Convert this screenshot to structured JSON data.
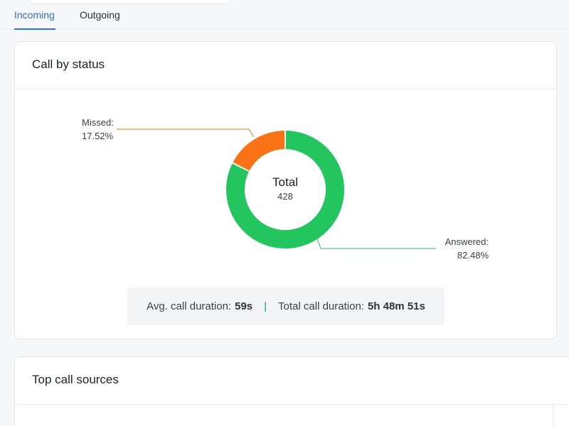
{
  "tabs": [
    {
      "label": "Incoming",
      "active": true
    },
    {
      "label": "Outgoing",
      "active": false
    }
  ],
  "status_card": {
    "title": "Call by status",
    "center_label": "Total",
    "center_value": "428",
    "summary": {
      "avg_label": "Avg. call duration:",
      "avg_value": "59s",
      "separator": "|",
      "total_label": "Total call duration:",
      "total_value": "5h 48m 51s"
    }
  },
  "chart_data": {
    "type": "pie",
    "center_label": "Total",
    "center_value": 428,
    "slices": [
      {
        "label": "Missed:",
        "value": 17.52,
        "value_text": "17.52%",
        "color": "#f97316"
      },
      {
        "label": "Answered:",
        "value": 82.48,
        "value_text": "82.48%",
        "color": "#22c55e"
      }
    ]
  },
  "sources_card": {
    "title": "Top call sources"
  },
  "colors": {
    "accent": "#2f6fcf",
    "missed": "#f97316",
    "answered": "#22c55e"
  }
}
